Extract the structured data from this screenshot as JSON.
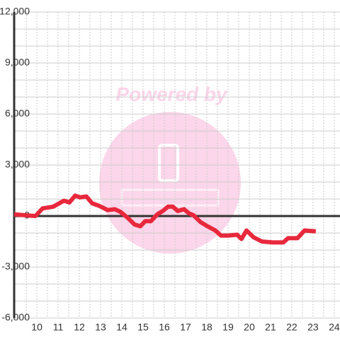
{
  "chart_data": {
    "type": "line",
    "watermark": "Powered by",
    "x": [
      8.93,
      9.93,
      10.27,
      10.77,
      11.27,
      11.53,
      11.8,
      12.03,
      12.33,
      12.6,
      12.93,
      13.33,
      13.67,
      13.93,
      14.27,
      14.6,
      14.87,
      15.1,
      15.37,
      15.67,
      15.93,
      16.17,
      16.4,
      16.63,
      16.93,
      17.17,
      17.37,
      17.7,
      18.03,
      18.4,
      18.67,
      19.0,
      19.43,
      19.63,
      19.87,
      20.2,
      20.6,
      21.1,
      21.6,
      21.83,
      22.27,
      22.6,
      23.13
    ],
    "series": [
      {
        "color": "#e8283c",
        "values": [
          100,
          0,
          450,
          550,
          900,
          800,
          1200,
          1100,
          1150,
          750,
          600,
          350,
          400,
          250,
          -100,
          -500,
          -600,
          -300,
          -300,
          100,
          300,
          550,
          550,
          300,
          400,
          150,
          50,
          -350,
          -600,
          -850,
          -1150,
          -1150,
          -1100,
          -1350,
          -850,
          -1250,
          -1500,
          -1550,
          -1550,
          -1300,
          -1300,
          -850,
          -900
        ]
      }
    ],
    "xlim": [
      8.93,
      24.27
    ],
    "xticks": [
      10,
      11,
      12,
      13,
      14,
      15,
      16,
      17,
      18,
      19,
      20,
      21,
      22,
      23,
      24
    ],
    "xminorticks": [
      9.5,
      10.5,
      11.5,
      12.5,
      13.5,
      14.5,
      15.5,
      16.5,
      17.5,
      18.5,
      19.5,
      20.5,
      21.5,
      22.5,
      23.5
    ],
    "ylim": [
      -6000,
      12000
    ],
    "yticks": [
      {
        "value": -6000,
        "label": "-6,000"
      },
      {
        "value": -3000,
        "label": "-3,000"
      },
      0,
      {
        "value": 3000,
        "label": "3,000"
      },
      {
        "value": 6000,
        "label": "6,000"
      },
      {
        "value": 9000,
        "label": "9,000"
      },
      {
        "value": 12000,
        "label": "12,000"
      }
    ],
    "yminorticks": [
      -5000,
      -4000,
      -2000,
      -1000,
      1000,
      2000,
      4000,
      5000,
      7000,
      8000,
      10000,
      11000
    ],
    "grid": true
  }
}
